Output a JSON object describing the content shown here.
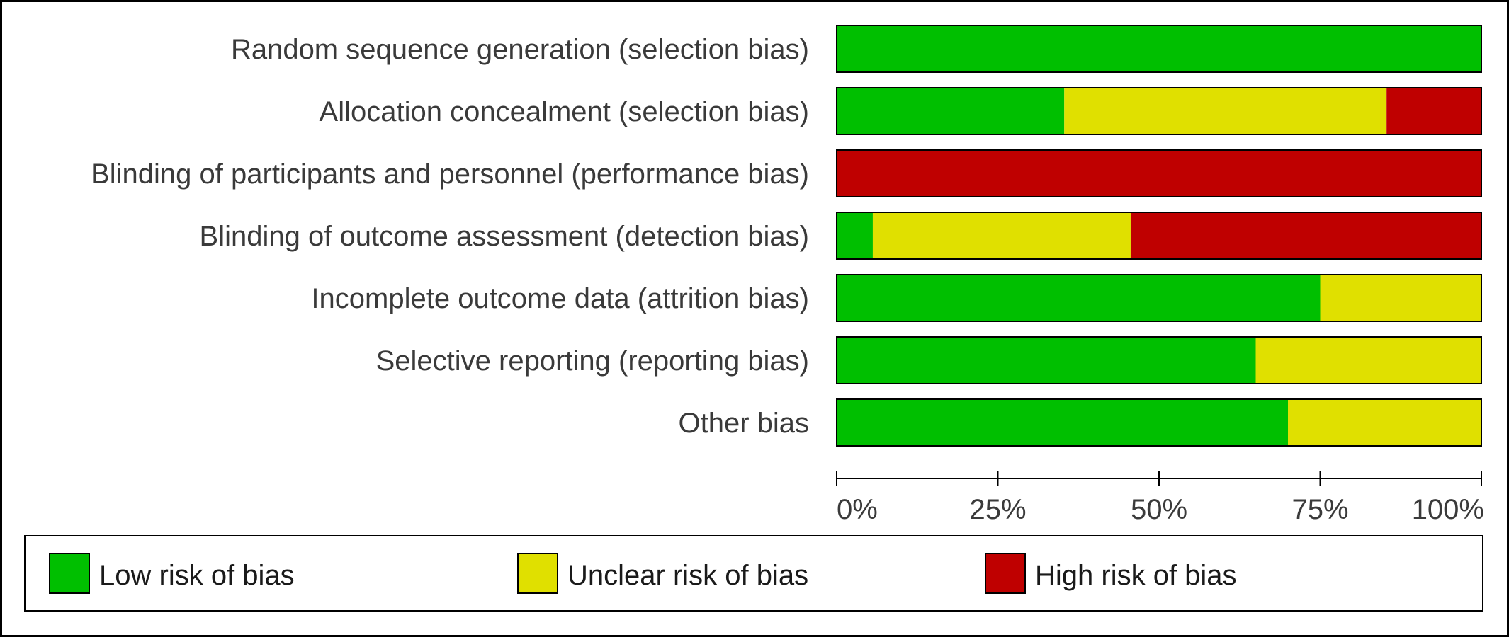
{
  "chart_data": {
    "type": "bar",
    "orientation": "horizontal",
    "stacked": true,
    "categories": [
      "Random sequence generation (selection bias)",
      "Allocation concealment (selection bias)",
      "Blinding of participants and personnel (performance bias)",
      "Blinding of outcome assessment (detection bias)",
      "Incomplete outcome data (attrition bias)",
      "Selective reporting (reporting bias)",
      "Other bias"
    ],
    "series": [
      {
        "name": "Low risk of bias",
        "color": "#00bf00",
        "values": [
          100,
          35.3,
          0,
          5.6,
          75,
          65,
          70
        ]
      },
      {
        "name": "Unclear risk of bias",
        "color": "#e0e000",
        "values": [
          0,
          50,
          0,
          40,
          25,
          35,
          30
        ]
      },
      {
        "name": "High risk of bias",
        "color": "#bf0000",
        "values": [
          0,
          14.7,
          100,
          54.4,
          0,
          0,
          0
        ]
      }
    ],
    "xlim": [
      0,
      100
    ],
    "xticks": [
      "0%",
      "25%",
      "50%",
      "75%",
      "100%"
    ],
    "title": "",
    "xlabel": "",
    "ylabel": "",
    "grid": false,
    "legend_position": "bottom"
  }
}
